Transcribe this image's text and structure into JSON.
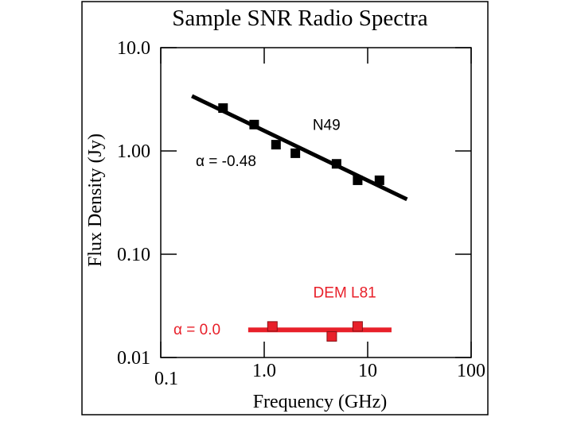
{
  "chart_data": {
    "type": "scatter",
    "title": "Sample SNR Radio Spectra",
    "xlabel": "Frequency (GHz)",
    "ylabel": "Flux Density (Jy)",
    "xscale": "log",
    "yscale": "log",
    "xlim": [
      0.1,
      100
    ],
    "ylim": [
      0.01,
      10
    ],
    "x_ticks": [
      {
        "value": 0.1,
        "label": "0.1"
      },
      {
        "value": 1,
        "label": "1.0"
      },
      {
        "value": 10,
        "label": "10"
      },
      {
        "value": 100,
        "label": "100"
      }
    ],
    "y_ticks": [
      {
        "value": 10,
        "label": "10.0"
      },
      {
        "value": 1,
        "label": "1.00"
      },
      {
        "value": 0.1,
        "label": "0.10"
      },
      {
        "value": 0.01,
        "label": "0.01"
      }
    ],
    "series": [
      {
        "name": "N49",
        "color": "#000000",
        "points": [
          {
            "x": 0.4,
            "y": 2.6
          },
          {
            "x": 0.8,
            "y": 1.8
          },
          {
            "x": 1.3,
            "y": 1.15
          },
          {
            "x": 2.0,
            "y": 0.95
          },
          {
            "x": 5.0,
            "y": 0.75
          },
          {
            "x": 8.0,
            "y": 0.52
          },
          {
            "x": 13.0,
            "y": 0.52
          }
        ],
        "fit": {
          "x": [
            0.2,
            24
          ],
          "y": [
            3.4,
            0.34
          ]
        },
        "annotation": "α = -0.48",
        "label_point": {
          "x": 4.0,
          "y": 1.6
        }
      },
      {
        "name": "DEM L81",
        "color": "#e8202a",
        "points": [
          {
            "x": 1.2,
            "y": 0.02
          },
          {
            "x": 4.5,
            "y": 0.016
          },
          {
            "x": 8.0,
            "y": 0.02
          }
        ],
        "fit": {
          "x": [
            0.7,
            17
          ],
          "y": [
            0.0185,
            0.0185
          ]
        },
        "annotation": "α = 0.0",
        "label_point": {
          "x": 6.0,
          "y": 0.038
        }
      }
    ]
  }
}
